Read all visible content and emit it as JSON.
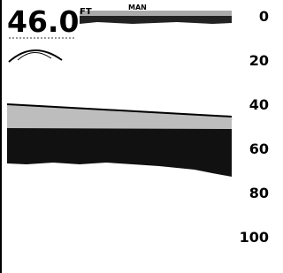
{
  "display": {
    "depth": "46.0",
    "unit": "FT",
    "mode": "MAN"
  },
  "scale": [
    0,
    20,
    40,
    60,
    80,
    100
  ]
}
